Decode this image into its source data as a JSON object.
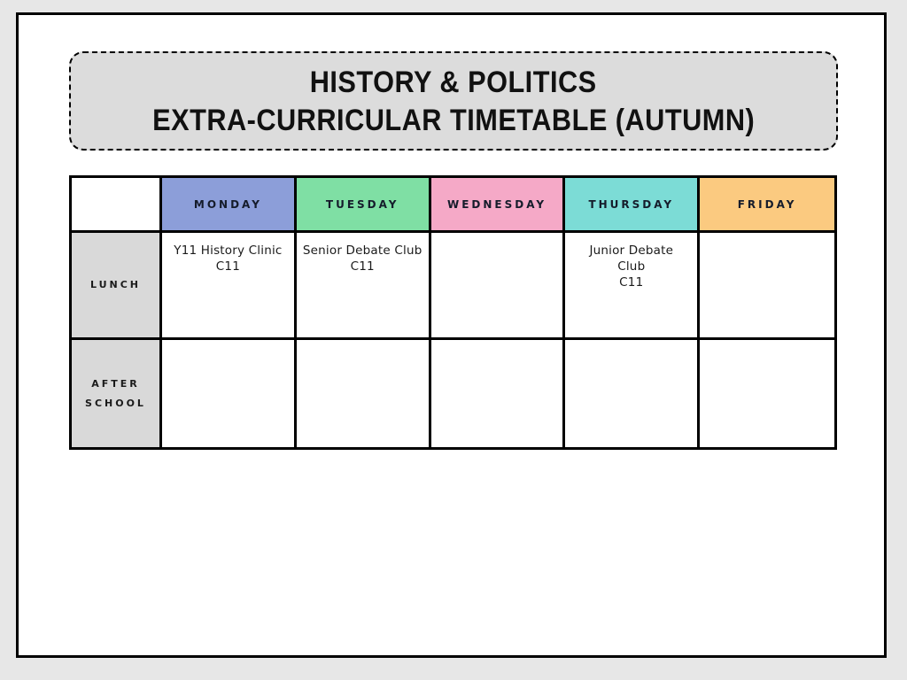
{
  "page": {
    "background_color": "#e7e7e7",
    "card_background_color": "#ffffff",
    "border_color": "#000000"
  },
  "title": {
    "line1": "HISTORY & POLITICS",
    "line2": "EXTRA-CURRICULAR TIMETABLE (AUTUMN)",
    "box_background_color": "#dcdcdc"
  },
  "timetable": {
    "row_label_background_color": "#d9d9d9",
    "days": [
      {
        "label": "MONDAY",
        "color": "#8c9ed9"
      },
      {
        "label": "TUESDAY",
        "color": "#7fdfa4"
      },
      {
        "label": "WEDNESDAY",
        "color": "#f5a9c7"
      },
      {
        "label": "THURSDAY",
        "color": "#7cdcd6"
      },
      {
        "label": "FRIDAY",
        "color": "#fbca80"
      }
    ],
    "rows": [
      {
        "label_lines": [
          "LUNCH"
        ],
        "cells": [
          {
            "lines": [
              "Y11 History Clinic",
              "C11"
            ]
          },
          {
            "lines": [
              "Senior Debate Club",
              "C11"
            ]
          },
          {
            "lines": []
          },
          {
            "lines": [
              "Junior Debate",
              "Club",
              "C11"
            ]
          },
          {
            "lines": []
          }
        ]
      },
      {
        "label_lines": [
          "AFTER",
          "SCHOOL"
        ],
        "cells": [
          {
            "lines": []
          },
          {
            "lines": []
          },
          {
            "lines": []
          },
          {
            "lines": []
          },
          {
            "lines": []
          }
        ]
      }
    ]
  }
}
